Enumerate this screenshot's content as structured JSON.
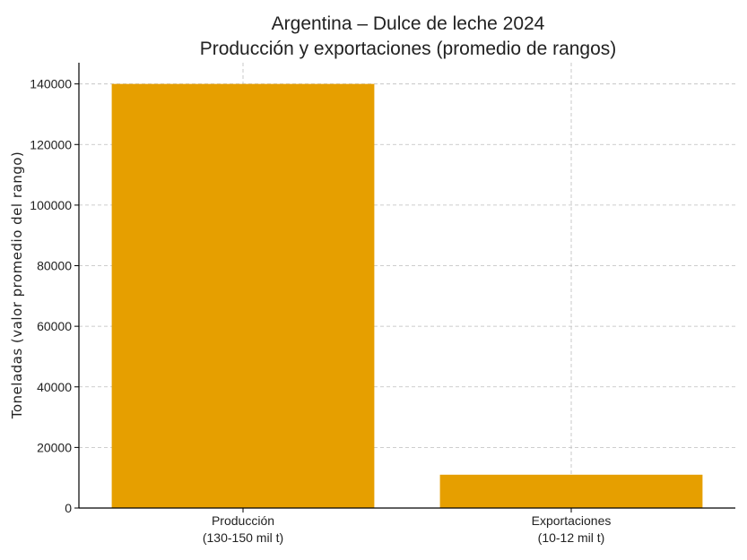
{
  "chart_data": {
    "type": "bar",
    "title_lines": [
      "Argentina – Dulce de leche 2024",
      "Producción y exportaciones (promedio de rangos)"
    ],
    "categories": [
      [
        "Producción",
        "(130-150 mil t)"
      ],
      [
        "Exportaciones",
        "(10-12 mil t)"
      ]
    ],
    "values": [
      140000,
      11000
    ],
    "ylabel": "Toneladas (valor promedio del rango)",
    "xlabel": "",
    "ylim": [
      0,
      147000
    ],
    "yticks": [
      0,
      20000,
      40000,
      60000,
      80000,
      100000,
      120000,
      140000
    ],
    "grid": true,
    "bar_color": "#E69F00"
  }
}
